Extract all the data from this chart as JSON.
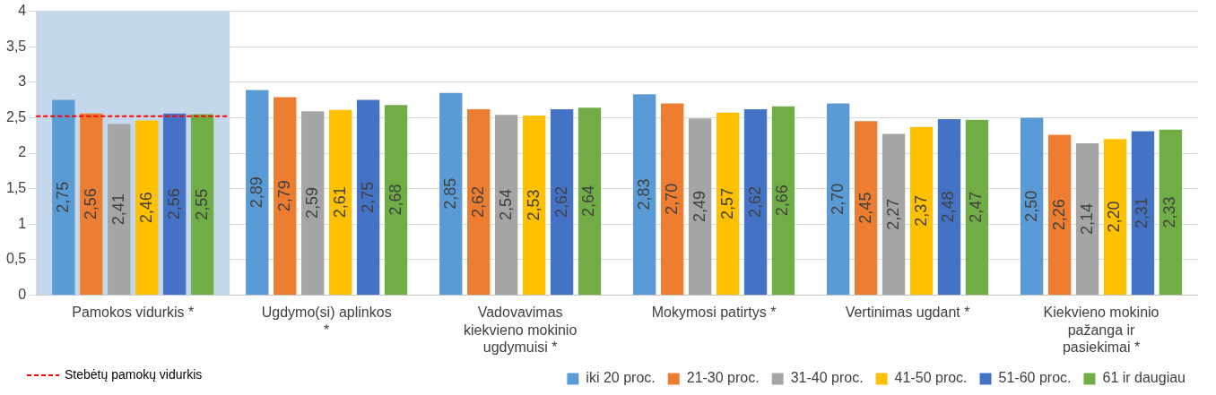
{
  "chart_data": {
    "type": "bar",
    "categories": [
      "Pamokos vidurkis *",
      "Ugdymo(si) aplinkos *",
      "Vadovavimas kiekvieno mokinio ugdymuisi *",
      "Mokymosi patirtys *",
      "Vertinimas ugdant *",
      "Kiekvieno mokinio pažanga ir pasiekimai *"
    ],
    "series": [
      {
        "name": "iki 20 proc.",
        "color": "#5b9bd5",
        "values": [
          2.75,
          2.89,
          2.85,
          2.83,
          2.7,
          2.5
        ],
        "value_labels": [
          "2,75",
          "2,89",
          "2,85",
          "2,83",
          "2,70",
          "2,50"
        ]
      },
      {
        "name": "21-30 proc.",
        "color": "#ed7d31",
        "values": [
          2.56,
          2.79,
          2.62,
          2.7,
          2.45,
          2.26
        ],
        "value_labels": [
          "2,56",
          "2,79",
          "2,62",
          "2,70",
          "2,45",
          "2,26"
        ]
      },
      {
        "name": "31-40 proc.",
        "color": "#a5a5a5",
        "values": [
          2.41,
          2.59,
          2.54,
          2.49,
          2.27,
          2.14
        ],
        "value_labels": [
          "2,41",
          "2,59",
          "2,54",
          "2,49",
          "2,27",
          "2,14"
        ]
      },
      {
        "name": "41-50 proc.",
        "color": "#ffc000",
        "values": [
          2.46,
          2.61,
          2.53,
          2.57,
          2.37,
          2.2
        ],
        "value_labels": [
          "2,46",
          "2,61",
          "2,53",
          "2,57",
          "2,37",
          "2,20"
        ]
      },
      {
        "name": "51-60 proc.",
        "color": "#4472c4",
        "values": [
          2.56,
          2.75,
          2.62,
          2.62,
          2.48,
          2.31
        ],
        "value_labels": [
          "2,56",
          "2,75",
          "2,62",
          "2,62",
          "2,48",
          "2,31"
        ]
      },
      {
        "name": "61 ir daugiau",
        "color": "#70ad47",
        "values": [
          2.55,
          2.68,
          2.64,
          2.66,
          2.47,
          2.33
        ],
        "value_labels": [
          "2,55",
          "2,68",
          "2,64",
          "2,66",
          "2,47",
          "2,33"
        ]
      }
    ],
    "ylim": [
      0,
      4
    ],
    "yticks": [
      0,
      {
        "value": 0.5,
        "label": "0,5"
      },
      1,
      {
        "value": 1.5,
        "label": "1,5"
      },
      2,
      {
        "value": 2.5,
        "label": "2,5"
      },
      3,
      {
        "value": 3.5,
        "label": "3,5"
      },
      4
    ],
    "grid": "y",
    "legend": "bottom",
    "ref_lines": [
      {
        "axis": "y",
        "value": 2.52,
        "label": "Stebėtų pamokų vidurkis",
        "color": "#ff0000",
        "line_style": "dashed"
      }
    ],
    "bands": [
      {
        "axis": "x",
        "from": "Pamokos vidurkis *",
        "to": "Pamokos vidurkis *",
        "color": "#c5d7ea"
      }
    ]
  }
}
